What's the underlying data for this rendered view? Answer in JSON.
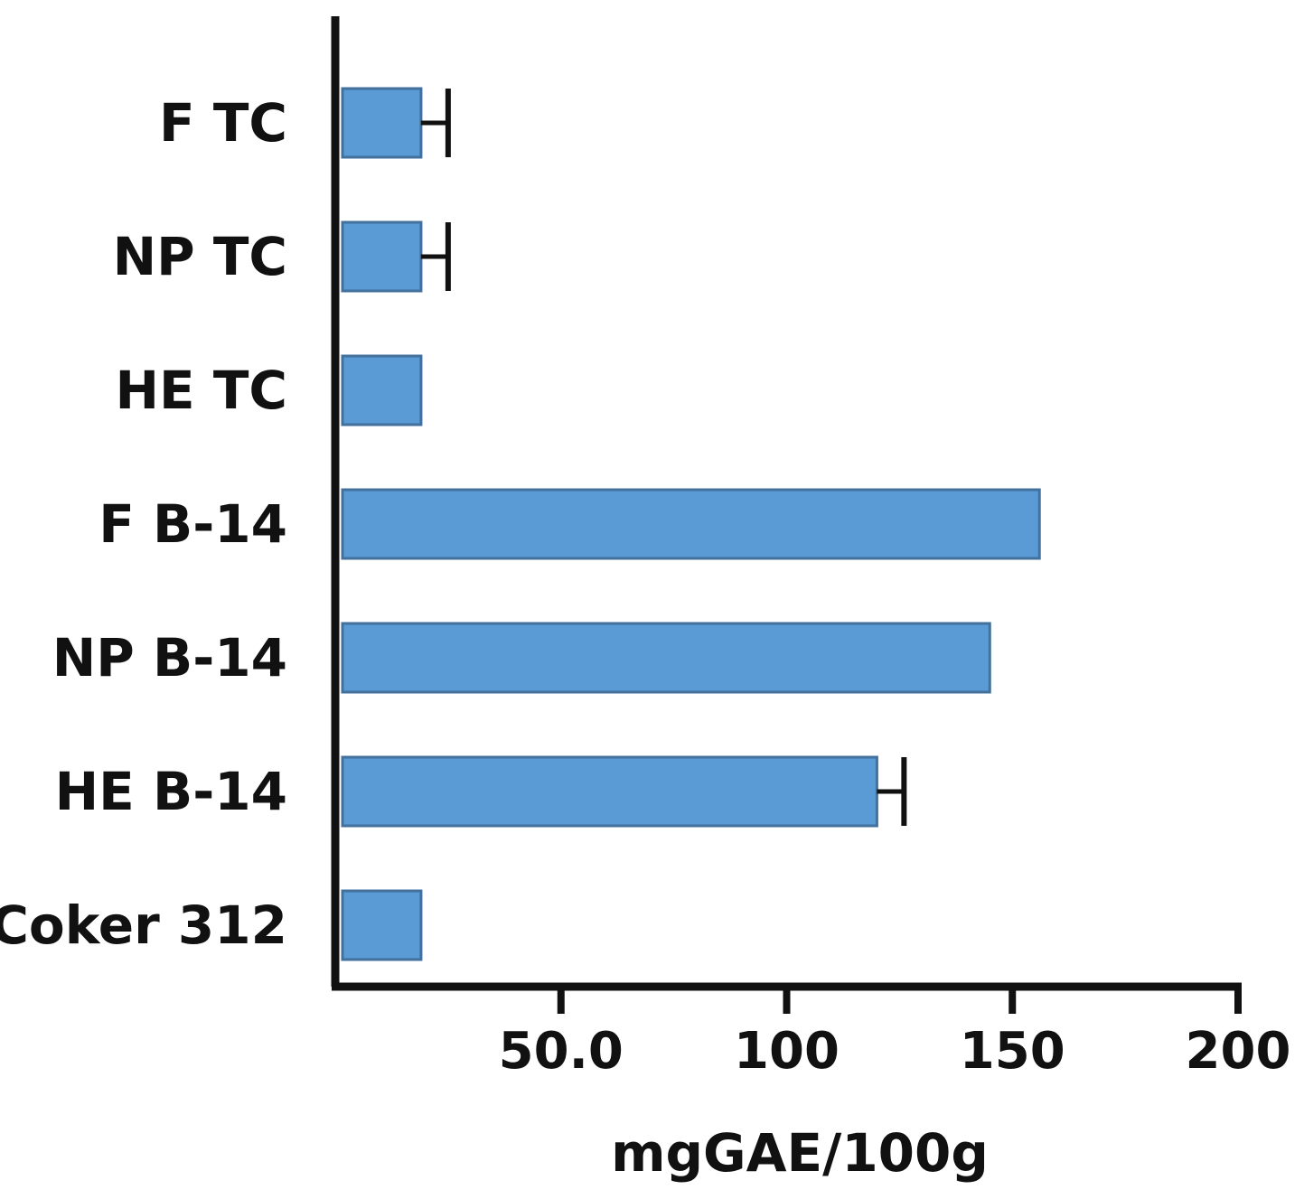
{
  "chart_data": {
    "type": "bar",
    "orientation": "horizontal",
    "categories": [
      "F TC",
      "NP TC",
      "HE TC",
      "F B-14",
      "NP B-14",
      "HE B-14",
      "Coker 312"
    ],
    "values": [
      19,
      19,
      19,
      156,
      145,
      120,
      19
    ],
    "errors": [
      6,
      6,
      0,
      0,
      0,
      6,
      0
    ],
    "xlabel": "mgGAE/100g",
    "ylabel": "",
    "title": "",
    "xlim": [
      0,
      200
    ],
    "xticks": [
      50,
      100,
      150,
      200
    ],
    "xtick_labels": [
      "50.0",
      "100",
      "150",
      "200"
    ],
    "grid": false,
    "legend": "none",
    "colors": {
      "bar_fill": "#5b9bd5",
      "bar_stroke": "#41719c",
      "axis": "#111111",
      "error_bar": "#111111"
    }
  }
}
